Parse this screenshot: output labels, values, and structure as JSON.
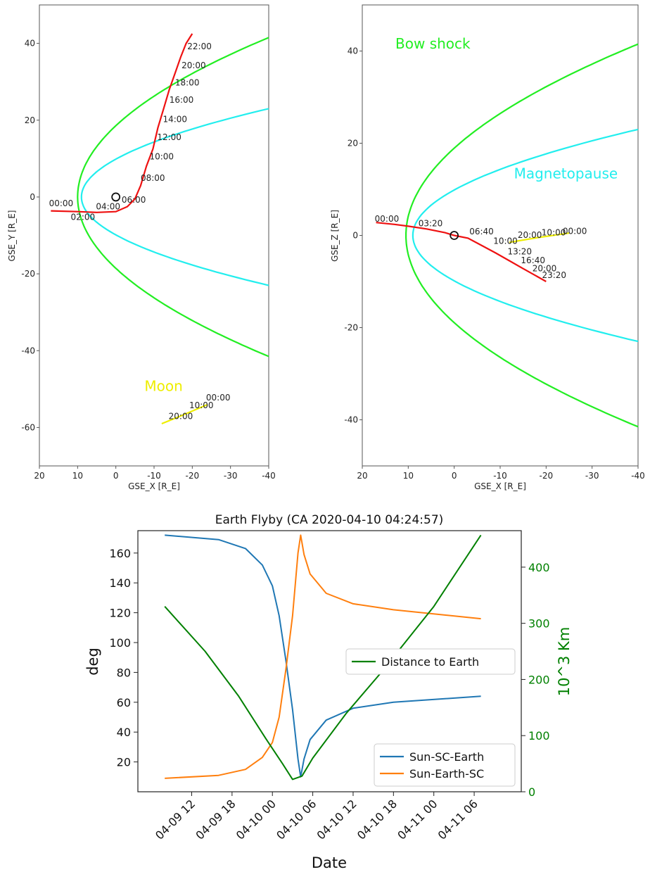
{
  "chart_data": [
    {
      "type": "line",
      "panel": "orbit-xy",
      "xlabel": "GSE_X [R_E]",
      "ylabel": "GSE_Y [R_E]",
      "xlim": [
        20,
        -40
      ],
      "ylim": [
        -70,
        50
      ],
      "xticks": [
        20,
        10,
        0,
        -10,
        -20,
        -30,
        -40
      ],
      "yticks": [
        40,
        20,
        0,
        -20,
        -40,
        -60
      ],
      "earth_marker": {
        "x": 0,
        "y": 0
      },
      "series": [
        {
          "name": "bow-shock",
          "color": "#22ee22",
          "shape": "parabola",
          "nose_x": 10,
          "flank_y_at_x_minus_40": 41.5
        },
        {
          "name": "magnetopause",
          "color": "#22eeee",
          "shape": "parabola",
          "nose_x": 9,
          "flank_y_at_x_minus_40": 23
        },
        {
          "name": "spacecraft",
          "color": "#ee1111",
          "points": [
            [
              17,
              -3.6
            ],
            [
              10,
              -3.8
            ],
            [
              5,
              -4
            ],
            [
              0,
              -3.8
            ],
            [
              -3,
              -2.5
            ],
            [
              -5,
              -0.5
            ],
            [
              -6.5,
              3
            ],
            [
              -8,
              8
            ],
            [
              -9.7,
              12.5
            ],
            [
              -11,
              18
            ],
            [
              -12.5,
              23
            ],
            [
              -14,
              28
            ],
            [
              -15.6,
              32.5
            ],
            [
              -17,
              36.5
            ],
            [
              -18.4,
              40
            ],
            [
              -20,
              42.5
            ]
          ]
        },
        {
          "name": "moon",
          "color": "#eeee00",
          "points": [
            [
              -12,
              -59
            ],
            [
              -17,
              -57
            ],
            [
              -24,
              -54
            ]
          ]
        }
      ],
      "labels": [
        {
          "text": "22:00",
          "x": -18.7,
          "y": 38.5
        },
        {
          "text": "20:00",
          "x": -17.2,
          "y": 33.5
        },
        {
          "text": "18:00",
          "x": -15.5,
          "y": 29
        },
        {
          "text": "16:00",
          "x": -14,
          "y": 24.5
        },
        {
          "text": "14:00",
          "x": -12.3,
          "y": 19.5
        },
        {
          "text": "12:00",
          "x": -10.8,
          "y": 14.8
        },
        {
          "text": "10:00",
          "x": -8.8,
          "y": 9.8
        },
        {
          "text": "08:00",
          "x": -6.5,
          "y": 4.2
        },
        {
          "text": "06:00",
          "x": -1.5,
          "y": -1.5
        },
        {
          "text": "04:00",
          "x": 5.2,
          "y": -3.2
        },
        {
          "text": "02:00",
          "x": 11.8,
          "y": -6
        },
        {
          "text": "00:00",
          "x": 17.5,
          "y": -2.4
        },
        {
          "text": "00:00",
          "x": -23.6,
          "y": -53
        },
        {
          "text": "10:00",
          "x": -19.2,
          "y": -55
        },
        {
          "text": "20:00",
          "x": -13.8,
          "y": -57.8
        }
      ],
      "annotations": [
        {
          "text": "Moon",
          "x": -7.5,
          "y": -50.5,
          "color": "#eeee00"
        }
      ]
    },
    {
      "type": "line",
      "panel": "orbit-xz",
      "xlabel": "GSE_X [R_E]",
      "ylabel": "GSE_Z [R_E]",
      "xlim": [
        20,
        -40
      ],
      "ylim": [
        -50,
        50
      ],
      "xticks": [
        20,
        10,
        0,
        -10,
        -20,
        -30,
        -40
      ],
      "yticks": [
        40,
        20,
        0,
        -20,
        -40
      ],
      "earth_marker": {
        "x": 0,
        "y": 0
      },
      "series": [
        {
          "name": "bow-shock",
          "color": "#22ee22",
          "shape": "parabola",
          "nose_x": 10.5,
          "flank_y_at_x_minus_40": 41.5
        },
        {
          "name": "magnetopause",
          "color": "#22eeee",
          "shape": "parabola",
          "nose_x": 9,
          "flank_y_at_x_minus_40": 23
        },
        {
          "name": "spacecraft",
          "color": "#ee1111",
          "points": [
            [
              17,
              2.8
            ],
            [
              13,
              2.4
            ],
            [
              10,
              2
            ],
            [
              6,
              1.4
            ],
            [
              2,
              0.6
            ],
            [
              0,
              0
            ],
            [
              -3,
              -0.6
            ],
            [
              -6,
              -2.2
            ],
            [
              -9,
              -3.8
            ],
            [
              -12,
              -5.5
            ],
            [
              -15,
              -7.2
            ],
            [
              -17.5,
              -8.6
            ],
            [
              -20,
              -10
            ]
          ]
        },
        {
          "name": "moon",
          "color": "#eeee00",
          "points": [
            [
              -12,
              -1.5
            ],
            [
              -18,
              -0.5
            ],
            [
              -25,
              0.5
            ]
          ]
        }
      ],
      "labels": [
        {
          "text": "00:00",
          "x": 17.3,
          "y": 3
        },
        {
          "text": "03:20",
          "x": 7.8,
          "y": 2
        },
        {
          "text": "06:40",
          "x": -3.3,
          "y": 0.2
        },
        {
          "text": "10:00",
          "x": -8.5,
          "y": -1.8
        },
        {
          "text": "13:20",
          "x": -11.6,
          "y": -4.1
        },
        {
          "text": "16:40",
          "x": -14.5,
          "y": -6
        },
        {
          "text": "20:00",
          "x": -17,
          "y": -7.8
        },
        {
          "text": "23:20",
          "x": -19.1,
          "y": -9.2
        },
        {
          "text": "20:00",
          "x": -13.8,
          "y": -0.5
        },
        {
          "text": "10:00",
          "x": -19,
          "y": 0
        },
        {
          "text": "00:00",
          "x": -23.6,
          "y": 0.3
        }
      ],
      "annotations": [
        {
          "text": "Bow shock",
          "x": 12.8,
          "y": 40.5,
          "color": "#22ee22"
        },
        {
          "text": "Magnetopause",
          "x": -13,
          "y": 12.4,
          "color": "#22eeee"
        }
      ]
    },
    {
      "type": "line",
      "panel": "flyby",
      "title": "Earth Flyby (CA 2020-04-10 04:24:57)",
      "xlabel": "Date",
      "ylabel": "deg",
      "ylabel_right": "10^3 Km",
      "x_range_hours": [
        4,
        61
      ],
      "ylim": [
        0,
        175
      ],
      "ylim_right": [
        0,
        465
      ],
      "xticks": [
        "04-09 12",
        "04-09 18",
        "04-10 00",
        "04-10 06",
        "04-10 12",
        "04-10 18",
        "04-11 00",
        "04-11 06"
      ],
      "yticks": [
        20,
        40,
        60,
        80,
        100,
        120,
        140,
        160
      ],
      "yticks_right": [
        0,
        100,
        200,
        300,
        400
      ],
      "series": [
        {
          "name": "Sun-SC-Earth",
          "color": "#1f77b4",
          "axis": "left",
          "x": [
            8,
            16,
            20,
            22.5,
            24,
            25,
            26,
            27,
            27.8,
            28.2,
            28.7,
            29.6,
            32,
            36,
            42,
            55
          ],
          "values": [
            172,
            169,
            163,
            152,
            138,
            118,
            88,
            55,
            22,
            10,
            22,
            35,
            48,
            56,
            60,
            64
          ]
        },
        {
          "name": "Sun-Earth-SC",
          "color": "#ff7f0e",
          "axis": "left",
          "x": [
            8,
            16,
            20,
            22.5,
            24,
            25,
            26,
            27,
            27.8,
            28.2,
            28.7,
            29.6,
            32,
            36,
            42,
            55
          ],
          "values": [
            9,
            11,
            15,
            23,
            33,
            50,
            82,
            118,
            160,
            172,
            159,
            146,
            133,
            126,
            122,
            116
          ]
        },
        {
          "name": "Distance to Earth",
          "color": "#008000",
          "axis": "right",
          "x": [
            8,
            14,
            19,
            23,
            25.5,
            27,
            28.4,
            30,
            35,
            40,
            48,
            55
          ],
          "values": [
            330,
            250,
            170,
            95,
            50,
            22,
            28,
            60,
            140,
            210,
            330,
            457
          ]
        }
      ],
      "legends": [
        "Distance to Earth",
        "Sun-SC-Earth",
        "Sun-Earth-SC"
      ]
    }
  ]
}
